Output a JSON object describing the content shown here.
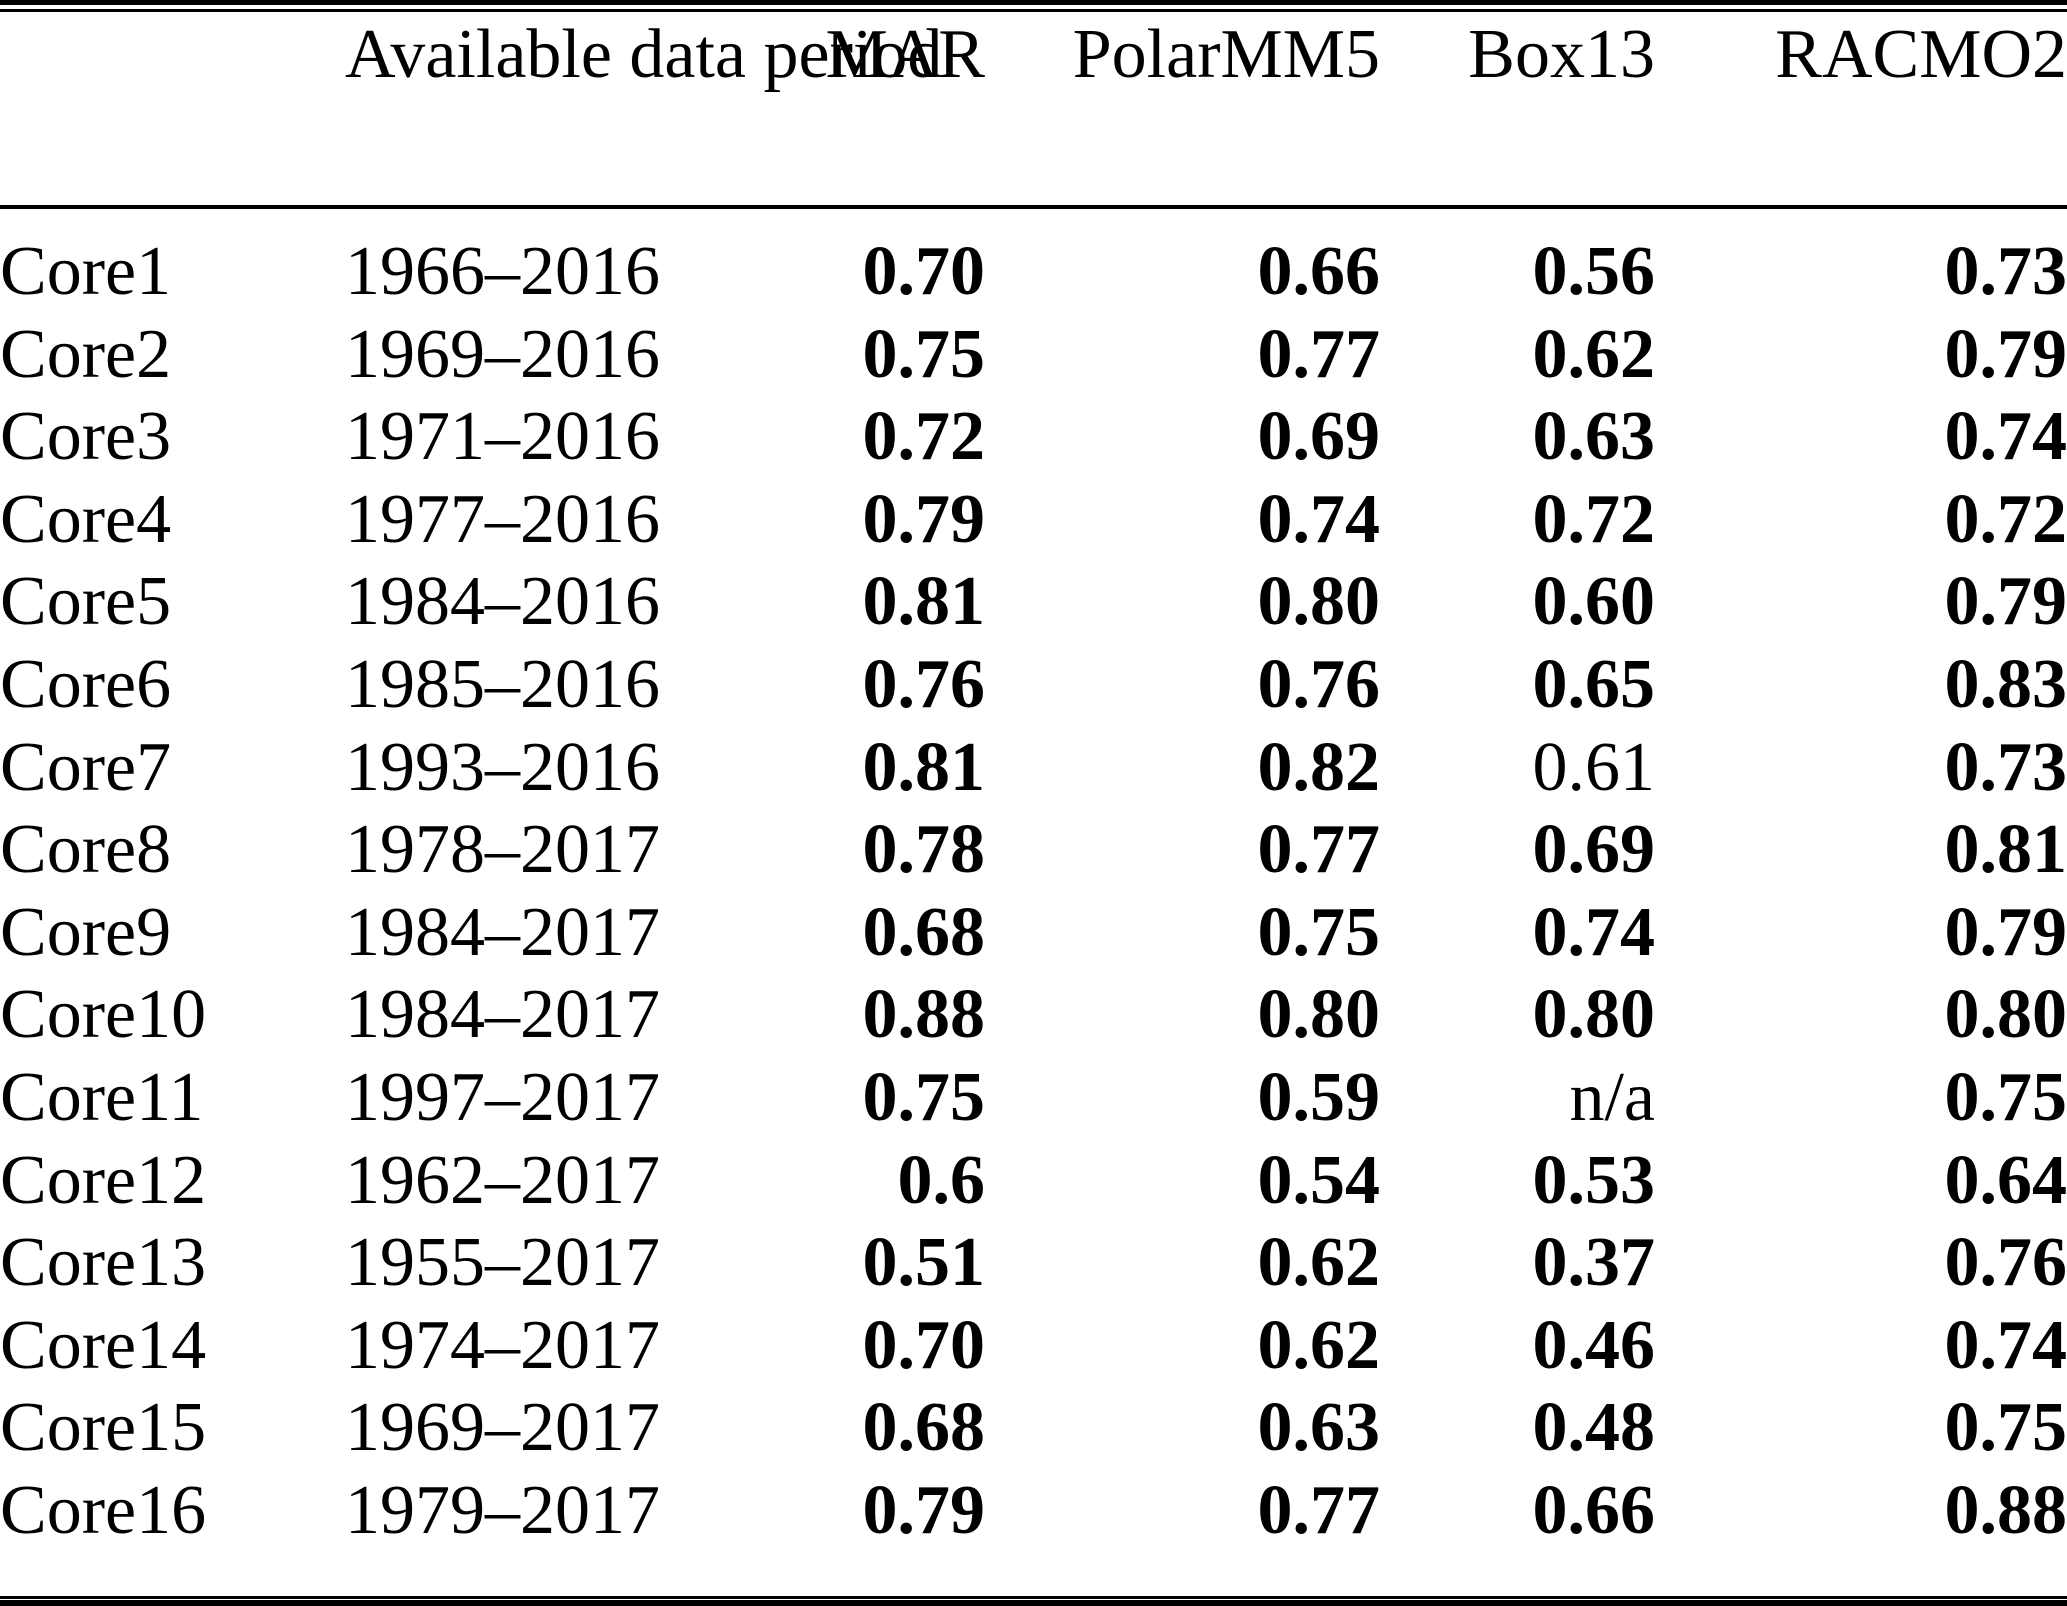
{
  "table": {
    "header": {
      "core_label": "",
      "period_label": "Available data\nperiod",
      "model_columns": [
        "MAR",
        "PolarMM5",
        "Box13",
        "RACMO2"
      ]
    },
    "rows": [
      {
        "core": "Core1",
        "period": "1966–2016",
        "values": [
          {
            "text": "0.70",
            "bold": true
          },
          {
            "text": "0.66",
            "bold": true
          },
          {
            "text": "0.56",
            "bold": true
          },
          {
            "text": "0.73",
            "bold": true
          }
        ]
      },
      {
        "core": "Core2",
        "period": "1969–2016",
        "values": [
          {
            "text": "0.75",
            "bold": true
          },
          {
            "text": "0.77",
            "bold": true
          },
          {
            "text": "0.62",
            "bold": true
          },
          {
            "text": "0.79",
            "bold": true
          }
        ]
      },
      {
        "core": "Core3",
        "period": "1971–2016",
        "values": [
          {
            "text": "0.72",
            "bold": true
          },
          {
            "text": "0.69",
            "bold": true
          },
          {
            "text": "0.63",
            "bold": true
          },
          {
            "text": "0.74",
            "bold": true
          }
        ]
      },
      {
        "core": "Core4",
        "period": "1977–2016",
        "values": [
          {
            "text": "0.79",
            "bold": true
          },
          {
            "text": "0.74",
            "bold": true
          },
          {
            "text": "0.72",
            "bold": true
          },
          {
            "text": "0.72",
            "bold": true
          }
        ]
      },
      {
        "core": "Core5",
        "period": "1984–2016",
        "values": [
          {
            "text": "0.81",
            "bold": true
          },
          {
            "text": "0.80",
            "bold": true
          },
          {
            "text": "0.60",
            "bold": true
          },
          {
            "text": "0.79",
            "bold": true
          }
        ]
      },
      {
        "core": "Core6",
        "period": "1985–2016",
        "values": [
          {
            "text": "0.76",
            "bold": true
          },
          {
            "text": "0.76",
            "bold": true
          },
          {
            "text": "0.65",
            "bold": true
          },
          {
            "text": "0.83",
            "bold": true
          }
        ]
      },
      {
        "core": "Core7",
        "period": "1993–2016",
        "values": [
          {
            "text": "0.81",
            "bold": true
          },
          {
            "text": "0.82",
            "bold": true
          },
          {
            "text": "0.61",
            "bold": false
          },
          {
            "text": "0.73",
            "bold": true
          }
        ]
      },
      {
        "core": "Core8",
        "period": "1978–2017",
        "values": [
          {
            "text": "0.78",
            "bold": true
          },
          {
            "text": "0.77",
            "bold": true
          },
          {
            "text": "0.69",
            "bold": true
          },
          {
            "text": "0.81",
            "bold": true
          }
        ]
      },
      {
        "core": "Core9",
        "period": "1984–2017",
        "values": [
          {
            "text": "0.68",
            "bold": true
          },
          {
            "text": "0.75",
            "bold": true
          },
          {
            "text": "0.74",
            "bold": true
          },
          {
            "text": "0.79",
            "bold": true
          }
        ]
      },
      {
        "core": "Core10",
        "period": "1984–2017",
        "values": [
          {
            "text": "0.88",
            "bold": true
          },
          {
            "text": "0.80",
            "bold": true
          },
          {
            "text": "0.80",
            "bold": true
          },
          {
            "text": "0.80",
            "bold": true
          }
        ]
      },
      {
        "core": "Core11",
        "period": "1997–2017",
        "values": [
          {
            "text": "0.75",
            "bold": true
          },
          {
            "text": "0.59",
            "bold": true
          },
          {
            "text": "n/a",
            "bold": false
          },
          {
            "text": "0.75",
            "bold": true
          }
        ]
      },
      {
        "core": "Core12",
        "period": "1962–2017",
        "values": [
          {
            "text": "0.6",
            "bold": true
          },
          {
            "text": "0.54",
            "bold": true
          },
          {
            "text": "0.53",
            "bold": true
          },
          {
            "text": "0.64",
            "bold": true
          }
        ]
      },
      {
        "core": "Core13",
        "period": "1955–2017",
        "values": [
          {
            "text": "0.51",
            "bold": true
          },
          {
            "text": "0.62",
            "bold": true
          },
          {
            "text": "0.37",
            "bold": true
          },
          {
            "text": "0.76",
            "bold": true
          }
        ]
      },
      {
        "core": "Core14",
        "period": "1974–2017",
        "values": [
          {
            "text": "0.70",
            "bold": true
          },
          {
            "text": "0.62",
            "bold": true
          },
          {
            "text": "0.46",
            "bold": true
          },
          {
            "text": "0.74",
            "bold": true
          }
        ]
      },
      {
        "core": "Core15",
        "period": "1969–2017",
        "values": [
          {
            "text": "0.68",
            "bold": true
          },
          {
            "text": "0.63",
            "bold": true
          },
          {
            "text": "0.48",
            "bold": true
          },
          {
            "text": "0.75",
            "bold": true
          }
        ]
      },
      {
        "core": "Core16",
        "period": "1979–2017",
        "values": [
          {
            "text": "0.79",
            "bold": true
          },
          {
            "text": "0.77",
            "bold": true
          },
          {
            "text": "0.66",
            "bold": true
          },
          {
            "text": "0.88",
            "bold": true
          }
        ]
      }
    ],
    "colors": {
      "text": "#000000",
      "background": "#ffffff",
      "rule": "#000000"
    }
  },
  "chart_data": {
    "type": "table",
    "title": "",
    "columns": [
      "",
      "Available data period",
      "MAR",
      "PolarMM5",
      "Box13",
      "RACMO2"
    ],
    "rows": [
      [
        "Core1",
        "1966–2016",
        "0.70",
        "0.66",
        "0.56",
        "0.73"
      ],
      [
        "Core2",
        "1969–2016",
        "0.75",
        "0.77",
        "0.62",
        "0.79"
      ],
      [
        "Core3",
        "1971–2016",
        "0.72",
        "0.69",
        "0.63",
        "0.74"
      ],
      [
        "Core4",
        "1977–2016",
        "0.79",
        "0.74",
        "0.72",
        "0.72"
      ],
      [
        "Core5",
        "1984–2016",
        "0.81",
        "0.80",
        "0.60",
        "0.79"
      ],
      [
        "Core6",
        "1985–2016",
        "0.76",
        "0.76",
        "0.65",
        "0.83"
      ],
      [
        "Core7",
        "1993–2016",
        "0.81",
        "0.82",
        "0.61",
        "0.73"
      ],
      [
        "Core8",
        "1978–2017",
        "0.78",
        "0.77",
        "0.69",
        "0.81"
      ],
      [
        "Core9",
        "1984–2017",
        "0.68",
        "0.75",
        "0.74",
        "0.79"
      ],
      [
        "Core10",
        "1984–2017",
        "0.88",
        "0.80",
        "0.80",
        "0.80"
      ],
      [
        "Core11",
        "1997–2017",
        "0.75",
        "0.59",
        "n/a",
        "0.75"
      ],
      [
        "Core12",
        "1962–2017",
        "0.6",
        "0.54",
        "0.53",
        "0.64"
      ],
      [
        "Core13",
        "1955–2017",
        "0.51",
        "0.62",
        "0.37",
        "0.76"
      ],
      [
        "Core14",
        "1974–2017",
        "0.70",
        "0.62",
        "0.46",
        "0.74"
      ],
      [
        "Core15",
        "1969–2017",
        "0.68",
        "0.63",
        "0.48",
        "0.75"
      ],
      [
        "Core16",
        "1979–2017",
        "0.79",
        "0.77",
        "0.66",
        "0.88"
      ]
    ]
  }
}
